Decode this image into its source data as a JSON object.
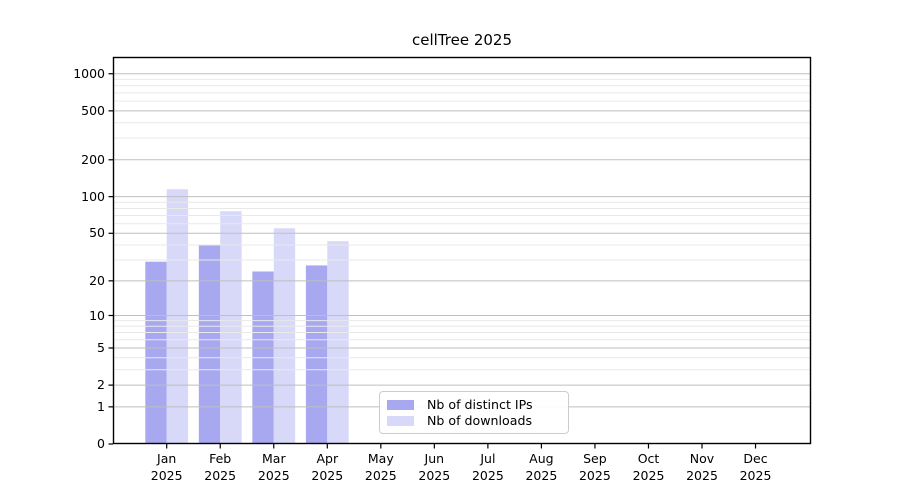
{
  "chart_data": {
    "type": "bar",
    "title": "cellTree 2025",
    "categories": [
      "Jan 2025",
      "Feb 2025",
      "Mar 2025",
      "Apr 2025",
      "May 2025",
      "Jun 2025",
      "Jul 2025",
      "Aug 2025",
      "Sep 2025",
      "Oct 2025",
      "Nov 2025",
      "Dec 2025"
    ],
    "series": [
      {
        "name": "Nb of distinct IPs",
        "color": "#a8a8f0",
        "values": [
          29,
          40,
          24,
          27,
          null,
          null,
          null,
          null,
          null,
          null,
          null,
          null
        ]
      },
      {
        "name": "Nb of downloads",
        "color": "#d8d8f8",
        "values": [
          115,
          76,
          55,
          43,
          null,
          null,
          null,
          null,
          null,
          null,
          null,
          null
        ]
      }
    ],
    "yscale": "log1p",
    "yticks": [
      0,
      1,
      2,
      5,
      10,
      20,
      50,
      100,
      200,
      500,
      1000
    ],
    "minor_gridlines": [
      3,
      4,
      6,
      7,
      8,
      9,
      30,
      40,
      60,
      70,
      80,
      90,
      300,
      400,
      600,
      700,
      800,
      900
    ],
    "ylim": [
      0,
      1368
    ],
    "xlabel": "",
    "ylabel": "",
    "grid": true,
    "legend_position": "lower center"
  }
}
